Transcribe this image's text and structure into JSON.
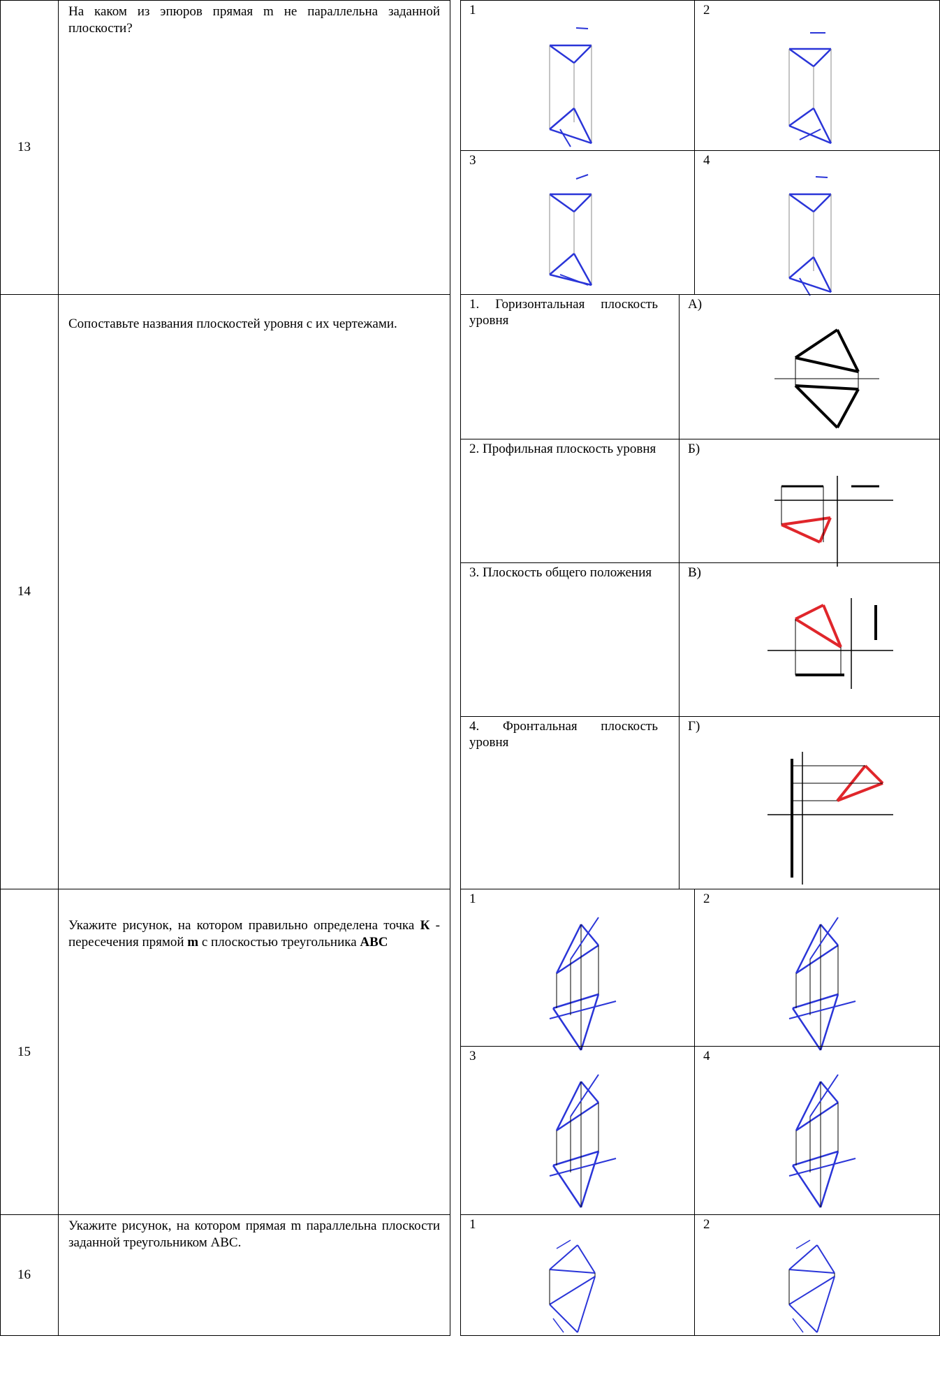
{
  "rows": [
    {
      "number": "13",
      "question": "На каком из эпюров прямая m не параллельна заданной плоскости?",
      "options": [
        "1",
        "2",
        "3",
        "4"
      ]
    },
    {
      "number": "14",
      "question": "Сопоставьте названия плоскостей уровня с их чертежами.",
      "items": [
        "1. Горизонтальная плоскость уровня",
        "2. Профильная плоскость уровня",
        "3. Плоскость общего положения",
        "4. Фронтальная плоскость уровня"
      ],
      "answers": [
        "А)",
        "Б)",
        "В)",
        "Г)"
      ]
    },
    {
      "number": "15",
      "question": [
        "Укажите рисунок, на котором правильно определена точка ",
        "К",
        " - пересечения прямой ",
        "m",
        " с плоскостью треугольника ",
        "ABC"
      ],
      "options": [
        "1",
        "2",
        "3",
        "4"
      ]
    },
    {
      "number": "16",
      "question": "Укажите рисунок, на котором прямая m параллельна плоскости заданной треугольником ABC.",
      "options": [
        "1",
        "2"
      ]
    }
  ]
}
